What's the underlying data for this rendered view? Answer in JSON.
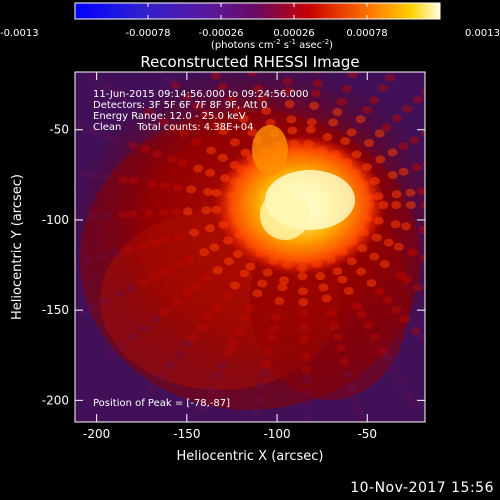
{
  "colorbar": {
    "ticks": [
      "-0.0013",
      "-0.00078",
      "-0.00026",
      "0.00026",
      "0.00078",
      "0.0013"
    ],
    "range": [
      -0.0013,
      0.0013
    ],
    "unit_base": "(photons cm",
    "unit_exp1": "-2",
    "unit_mid": " s",
    "unit_exp2": "-1",
    "unit_asec": " asec",
    "unit_exp3": "-2",
    "unit_end": ")"
  },
  "plot": {
    "title": "Reconstructed RHESSI Image",
    "info_lines": [
      "11-Jun-2015 09:14:56.000 to 09:24:56.000",
      "Detectors: 3F 5F 6F 7F 8F 9F, Att 0",
      "Energy Range: 12.0 - 25.0 keV",
      "Clean     Total counts: 4.38E+04"
    ],
    "peak_label": "Position of Peak = [-78,-87]",
    "xlabel": "Heliocentric X (arcsec)",
    "ylabel": "Heliocentric Y (arcsec)",
    "xticks": [
      "-200",
      "-150",
      "-100",
      "-50"
    ],
    "yticks": [
      "-50",
      "-100",
      "-150",
      "-200"
    ],
    "xrange": [
      -212,
      -18
    ],
    "yrange": [
      -212,
      -18
    ],
    "peak": [
      -78,
      -87
    ]
  },
  "footer": {
    "timestamp": "10-Nov-2017 15:56"
  }
}
